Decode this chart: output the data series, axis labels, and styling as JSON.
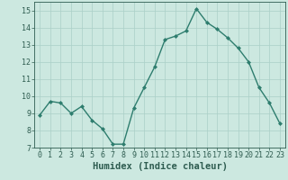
{
  "x": [
    0,
    1,
    2,
    3,
    4,
    5,
    6,
    7,
    8,
    9,
    10,
    11,
    12,
    13,
    14,
    15,
    16,
    17,
    18,
    19,
    20,
    21,
    22,
    23
  ],
  "y": [
    8.9,
    9.7,
    9.6,
    9.0,
    9.4,
    8.6,
    8.1,
    7.2,
    7.2,
    9.3,
    10.5,
    11.7,
    13.3,
    13.5,
    13.8,
    15.1,
    14.3,
    13.9,
    13.4,
    12.8,
    12.0,
    10.5,
    9.6,
    8.4
  ],
  "line_color": "#2e7d6e",
  "marker": "D",
  "marker_size": 2.0,
  "bg_color": "#cce8e0",
  "grid_color": "#aacfc7",
  "xlabel": "Humidex (Indice chaleur)",
  "xlim": [
    -0.5,
    23.5
  ],
  "ylim": [
    7,
    15.5
  ],
  "yticks": [
    7,
    8,
    9,
    10,
    11,
    12,
    13,
    14,
    15
  ],
  "xticks": [
    0,
    1,
    2,
    3,
    4,
    5,
    6,
    7,
    8,
    9,
    10,
    11,
    12,
    13,
    14,
    15,
    16,
    17,
    18,
    19,
    20,
    21,
    22,
    23
  ],
  "tick_label_color": "#2e5c50",
  "xlabel_fontsize": 7.5,
  "tick_fontsize": 6.0,
  "linewidth": 1.0
}
